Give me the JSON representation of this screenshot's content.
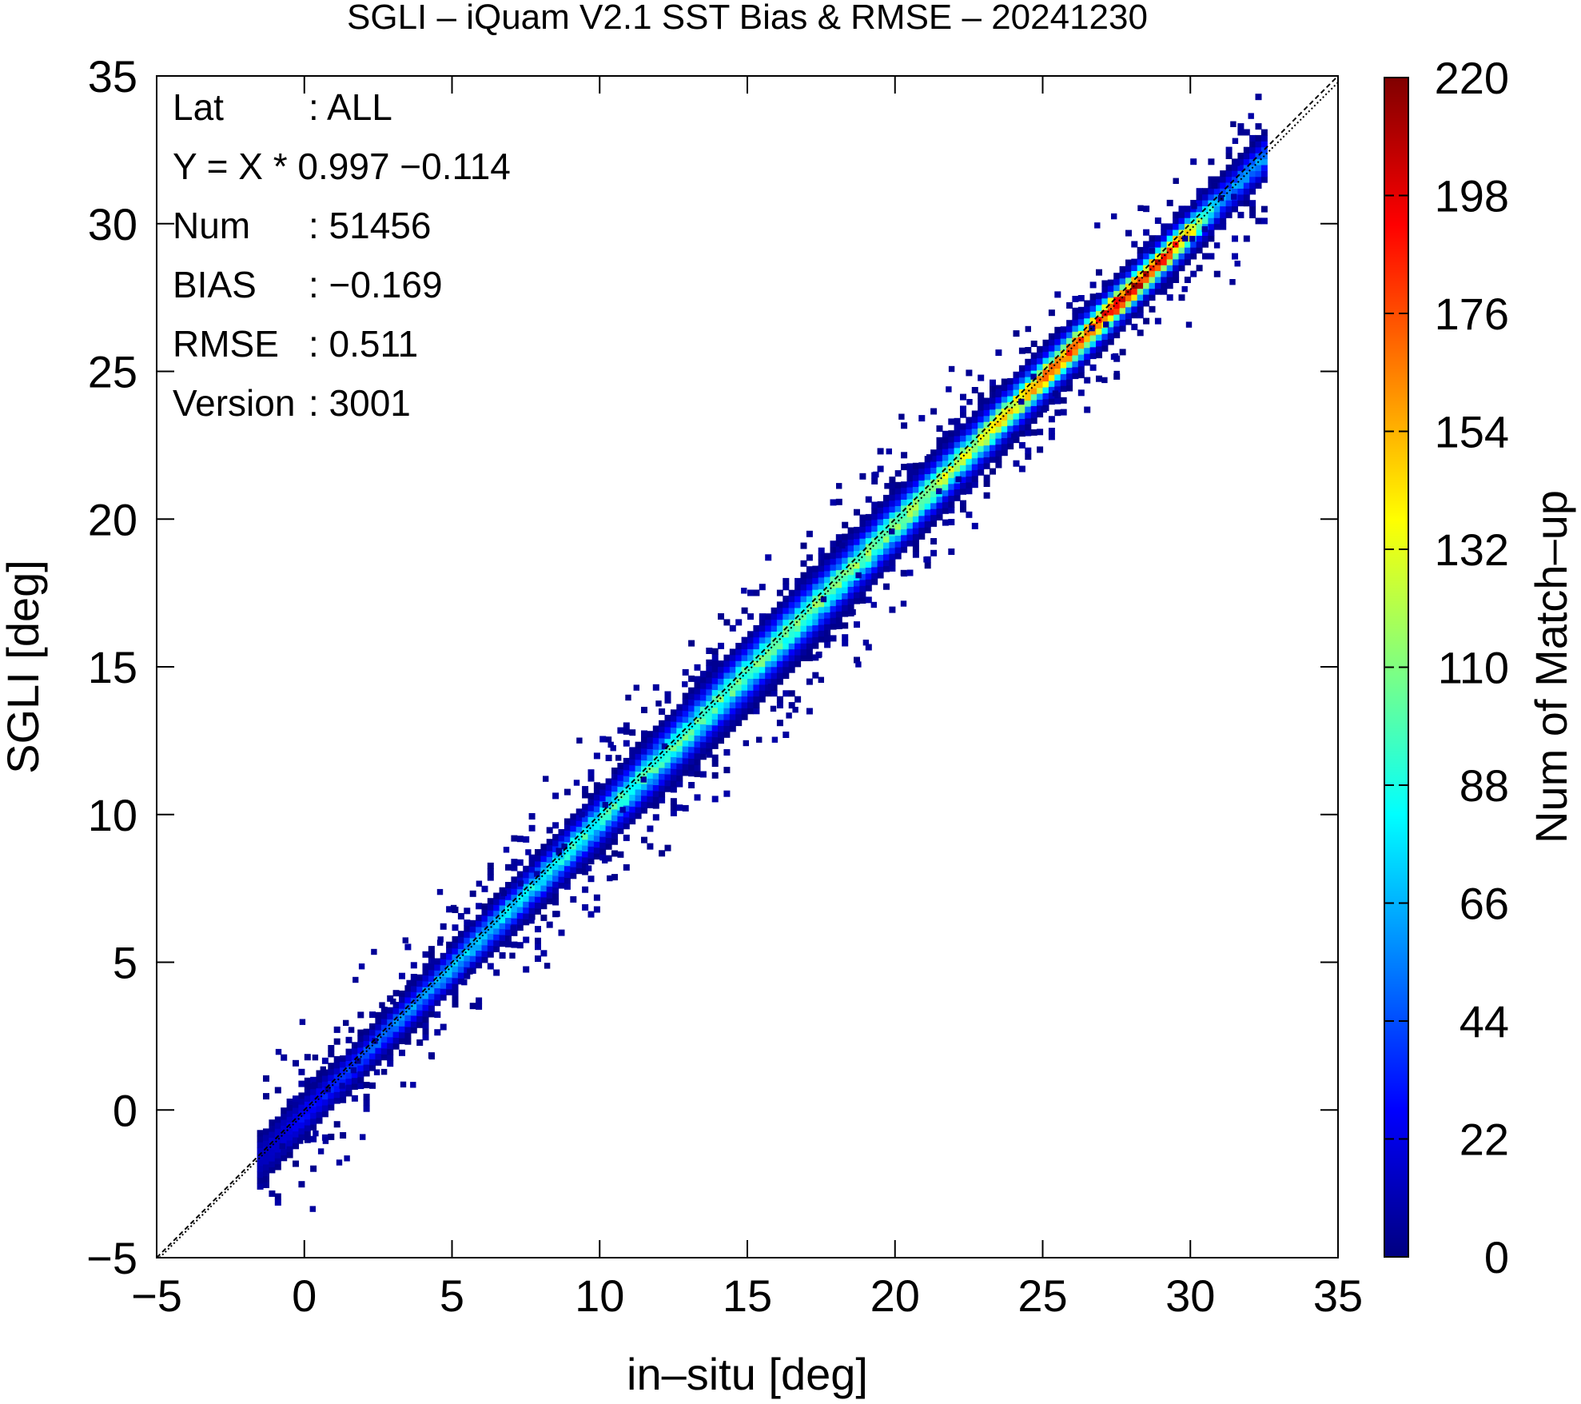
{
  "chart_data": {
    "type": "heatmap",
    "title": "SGLI – iQuam V2.1 SST Bias & RMSE  – 20241230",
    "xlabel": "in–situ [deg]",
    "ylabel": "SGLI [deg]",
    "xlim": [
      -5,
      35
    ],
    "ylim": [
      -5,
      35
    ],
    "xticks": [
      -5,
      0,
      5,
      10,
      15,
      20,
      25,
      30,
      35
    ],
    "yticks": [
      -5,
      0,
      5,
      10,
      15,
      20,
      25,
      30,
      35
    ],
    "xtick_labels": [
      "−5",
      "0",
      "5",
      "10",
      "15",
      "20",
      "25",
      "30",
      "35"
    ],
    "ytick_labels": [
      "−5",
      "0",
      "5",
      "10",
      "15",
      "20",
      "25",
      "30",
      "35"
    ],
    "colorbar": {
      "label": "Num of Match–up",
      "min": 0,
      "max": 220,
      "ticks": [
        0,
        22,
        44,
        66,
        88,
        110,
        132,
        154,
        176,
        198,
        220
      ],
      "tick_labels": [
        "0",
        "22",
        "44",
        "66",
        "88",
        "110",
        "132",
        "154",
        "176",
        "198",
        "220"
      ],
      "colormap": [
        "#000080",
        "#0000ff",
        "#0080ff",
        "#00ffff",
        "#80ff80",
        "#ffff00",
        "#ff8000",
        "#ff0000",
        "#800000"
      ]
    },
    "reference_lines": [
      {
        "name": "1:1 line",
        "style": "dashed",
        "x": [
          -5,
          35
        ],
        "y": [
          -5,
          35
        ]
      },
      {
        "name": "regression",
        "style": "dotted",
        "slope": 0.997,
        "intercept": -0.114
      }
    ],
    "stats": {
      "slope": 0.997,
      "intercept": -0.114,
      "num": 51456,
      "bias": -0.169,
      "rmse": 0.511
    },
    "annotations": [
      {
        "key": "Lat",
        "value": ": ALL"
      },
      {
        "key": "Y = X * 0.997 −0.114",
        "value": ""
      },
      {
        "key": "Num",
        "value": ": 51456"
      },
      {
        "key": "BIAS",
        "value": ": −0.169"
      },
      {
        "key": "RMSE",
        "value": ": 0.511"
      },
      {
        "key": "Version",
        "value": ": 3001"
      }
    ],
    "density_ridge": {
      "x": [
        -1.5,
        0,
        2,
        5,
        8,
        11,
        14,
        17,
        20,
        23,
        26,
        28,
        29.5,
        31
      ],
      "peak_count": [
        15,
        30,
        45,
        70,
        85,
        95,
        100,
        105,
        110,
        130,
        175,
        210,
        170,
        60
      ],
      "spread": [
        1.2,
        0.9,
        0.8,
        0.9,
        1.0,
        1.2,
        1.3,
        1.3,
        1.2,
        1.1,
        1.0,
        0.9,
        0.9,
        0.9
      ]
    }
  }
}
